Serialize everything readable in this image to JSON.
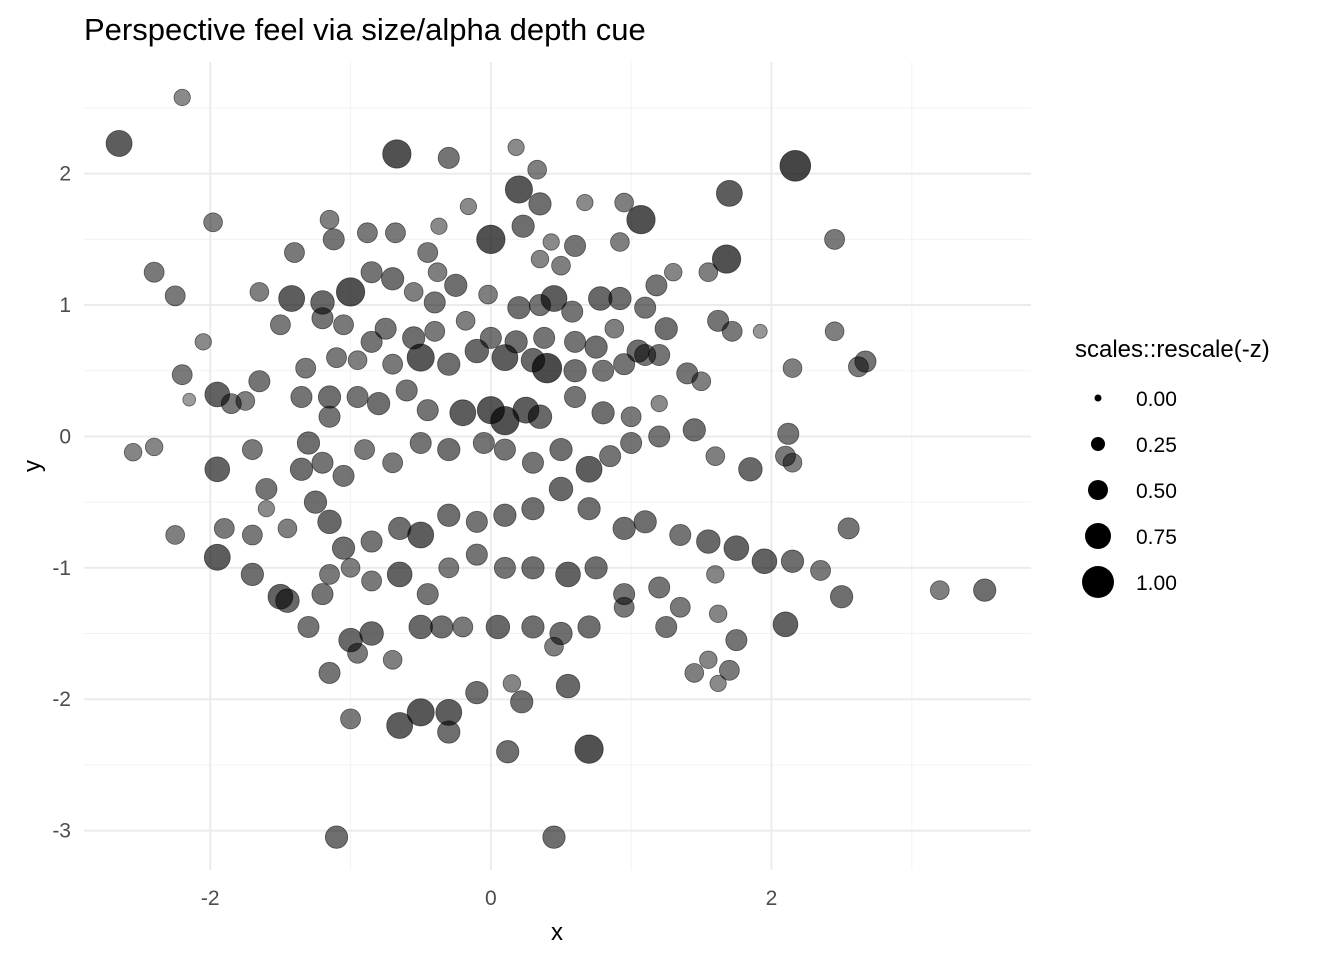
{
  "chart_data": {
    "type": "scatter",
    "title": "Perspective feel via size/alpha depth cue",
    "xlabel": "x",
    "ylabel": "y",
    "xlim": [
      -2.9,
      3.85
    ],
    "ylim": [
      -3.3,
      2.85
    ],
    "x_ticks": [
      -2,
      0,
      2
    ],
    "x_tick_labels": [
      "-2",
      "0",
      "2"
    ],
    "y_ticks": [
      -3,
      -2,
      -1,
      0,
      1,
      2
    ],
    "y_tick_labels": [
      "-3",
      "-2",
      "-1",
      "0",
      "1",
      "2"
    ],
    "grid": true,
    "legend": {
      "title": "scales::rescale(-z)",
      "placement": "right",
      "entries": [
        {
          "value": 0.0,
          "label": "0.00"
        },
        {
          "value": 0.25,
          "label": "0.25"
        },
        {
          "value": 0.5,
          "label": "0.50"
        },
        {
          "value": 0.75,
          "label": "0.75"
        },
        {
          "value": 1.0,
          "label": "1.00"
        }
      ]
    },
    "point_color": "#000000",
    "points": [
      [
        -2.2,
        2.58,
        0.35
      ],
      [
        -2.65,
        2.23,
        0.75
      ],
      [
        -0.67,
        2.15,
        0.85
      ],
      [
        -0.3,
        2.12,
        0.55
      ],
      [
        0.18,
        2.2,
        0.35
      ],
      [
        0.33,
        2.03,
        0.45
      ],
      [
        0.2,
        1.88,
        0.8
      ],
      [
        0.35,
        1.77,
        0.6
      ],
      [
        0.67,
        1.78,
        0.35
      ],
      [
        0.95,
        1.78,
        0.45
      ],
      [
        1.7,
        1.85,
        0.75
      ],
      [
        2.17,
        2.06,
        0.95
      ],
      [
        -1.98,
        1.63,
        0.45
      ],
      [
        -1.15,
        1.65,
        0.45
      ],
      [
        -0.37,
        1.6,
        0.35
      ],
      [
        -0.16,
        1.75,
        0.35
      ],
      [
        0.0,
        1.5,
        0.85
      ],
      [
        0.23,
        1.6,
        0.6
      ],
      [
        0.43,
        1.48,
        0.35
      ],
      [
        0.6,
        1.45,
        0.55
      ],
      [
        0.92,
        1.48,
        0.45
      ],
      [
        1.07,
        1.65,
        0.85
      ],
      [
        1.68,
        1.35,
        0.85
      ],
      [
        2.45,
        1.5,
        0.5
      ],
      [
        -2.4,
        1.25,
        0.5
      ],
      [
        -1.4,
        1.4,
        0.5
      ],
      [
        -1.12,
        1.5,
        0.55
      ],
      [
        -0.88,
        1.55,
        0.5
      ],
      [
        -0.68,
        1.55,
        0.5
      ],
      [
        -0.45,
        1.4,
        0.5
      ],
      [
        -0.38,
        1.25,
        0.45
      ],
      [
        0.35,
        1.35,
        0.4
      ],
      [
        0.5,
        1.3,
        0.45
      ],
      [
        1.3,
        1.25,
        0.4
      ],
      [
        1.55,
        1.25,
        0.45
      ],
      [
        -2.25,
        1.07,
        0.5
      ],
      [
        -1.65,
        1.1,
        0.45
      ],
      [
        -1.42,
        1.05,
        0.75
      ],
      [
        -1.2,
        1.02,
        0.65
      ],
      [
        -1.0,
        1.1,
        0.85
      ],
      [
        -0.85,
        1.25,
        0.55
      ],
      [
        -0.7,
        1.2,
        0.6
      ],
      [
        -0.55,
        1.1,
        0.45
      ],
      [
        -0.4,
        1.02,
        0.55
      ],
      [
        -0.25,
        1.15,
        0.6
      ],
      [
        -0.02,
        1.08,
        0.45
      ],
      [
        0.2,
        0.98,
        0.6
      ],
      [
        0.35,
        1.0,
        0.55
      ],
      [
        0.45,
        1.05,
        0.75
      ],
      [
        0.58,
        0.95,
        0.55
      ],
      [
        0.78,
        1.05,
        0.65
      ],
      [
        0.92,
        1.05,
        0.6
      ],
      [
        1.18,
        1.15,
        0.55
      ],
      [
        1.1,
        0.98,
        0.55
      ],
      [
        1.25,
        0.82,
        0.6
      ],
      [
        1.62,
        0.88,
        0.55
      ],
      [
        1.72,
        0.8,
        0.5
      ],
      [
        1.92,
        0.8,
        0.25
      ],
      [
        2.45,
        0.8,
        0.45
      ],
      [
        -1.5,
        0.85,
        0.5
      ],
      [
        -1.2,
        0.9,
        0.55
      ],
      [
        -1.05,
        0.85,
        0.5
      ],
      [
        -0.85,
        0.72,
        0.55
      ],
      [
        -0.75,
        0.82,
        0.55
      ],
      [
        -0.55,
        0.75,
        0.6
      ],
      [
        -0.4,
        0.8,
        0.5
      ],
      [
        -0.18,
        0.88,
        0.45
      ],
      [
        0.0,
        0.75,
        0.55
      ],
      [
        0.18,
        0.72,
        0.6
      ],
      [
        0.38,
        0.75,
        0.55
      ],
      [
        0.6,
        0.72,
        0.55
      ],
      [
        0.75,
        0.68,
        0.6
      ],
      [
        0.88,
        0.82,
        0.45
      ],
      [
        1.05,
        0.65,
        0.6
      ],
      [
        1.2,
        0.62,
        0.55
      ],
      [
        -2.05,
        0.72,
        0.35
      ],
      [
        -2.2,
        0.47,
        0.5
      ],
      [
        -1.95,
        0.32,
        0.7
      ],
      [
        -1.65,
        0.42,
        0.55
      ],
      [
        -1.75,
        0.27,
        0.45
      ],
      [
        -1.32,
        0.52,
        0.5
      ],
      [
        -1.1,
        0.6,
        0.5
      ],
      [
        -0.95,
        0.58,
        0.45
      ],
      [
        -0.7,
        0.55,
        0.5
      ],
      [
        -0.5,
        0.6,
        0.8
      ],
      [
        -0.3,
        0.55,
        0.6
      ],
      [
        -0.1,
        0.65,
        0.65
      ],
      [
        0.1,
        0.6,
        0.75
      ],
      [
        0.3,
        0.58,
        0.65
      ],
      [
        0.4,
        0.52,
        0.9
      ],
      [
        0.6,
        0.5,
        0.6
      ],
      [
        0.8,
        0.5,
        0.55
      ],
      [
        0.95,
        0.55,
        0.55
      ],
      [
        1.1,
        0.62,
        0.55
      ],
      [
        1.4,
        0.48,
        0.55
      ],
      [
        1.5,
        0.42,
        0.45
      ],
      [
        2.15,
        0.52,
        0.45
      ],
      [
        2.62,
        0.53,
        0.5
      ],
      [
        2.67,
        0.57,
        0.55
      ],
      [
        -2.15,
        0.28,
        0.2
      ],
      [
        -1.85,
        0.25,
        0.5
      ],
      [
        -1.35,
        0.3,
        0.55
      ],
      [
        -1.15,
        0.3,
        0.6
      ],
      [
        -1.15,
        0.15,
        0.55
      ],
      [
        -0.95,
        0.3,
        0.55
      ],
      [
        -0.8,
        0.25,
        0.6
      ],
      [
        -0.6,
        0.35,
        0.55
      ],
      [
        -0.45,
        0.2,
        0.55
      ],
      [
        -0.2,
        0.18,
        0.75
      ],
      [
        0.0,
        0.2,
        0.8
      ],
      [
        0.1,
        0.12,
        0.85
      ],
      [
        0.25,
        0.2,
        0.75
      ],
      [
        0.35,
        0.15,
        0.65
      ],
      [
        0.6,
        0.3,
        0.55
      ],
      [
        0.8,
        0.18,
        0.6
      ],
      [
        1.0,
        0.15,
        0.5
      ],
      [
        1.2,
        0.25,
        0.35
      ],
      [
        -2.55,
        -0.12,
        0.4
      ],
      [
        -2.4,
        -0.08,
        0.4
      ],
      [
        -1.95,
        -0.25,
        0.7
      ],
      [
        -1.7,
        -0.1,
        0.5
      ],
      [
        -1.6,
        -0.4,
        0.55
      ],
      [
        -1.3,
        -0.05,
        0.6
      ],
      [
        -1.35,
        -0.25,
        0.6
      ],
      [
        -1.2,
        -0.2,
        0.55
      ],
      [
        -1.05,
        -0.3,
        0.55
      ],
      [
        -0.9,
        -0.1,
        0.5
      ],
      [
        -0.7,
        -0.2,
        0.5
      ],
      [
        -0.5,
        -0.05,
        0.55
      ],
      [
        -0.3,
        -0.1,
        0.6
      ],
      [
        -0.05,
        -0.05,
        0.55
      ],
      [
        0.1,
        -0.1,
        0.55
      ],
      [
        0.3,
        -0.2,
        0.55
      ],
      [
        0.5,
        -0.1,
        0.6
      ],
      [
        0.7,
        -0.25,
        0.75
      ],
      [
        0.85,
        -0.15,
        0.55
      ],
      [
        1.0,
        -0.05,
        0.55
      ],
      [
        1.2,
        0.0,
        0.55
      ],
      [
        1.45,
        0.05,
        0.6
      ],
      [
        1.6,
        -0.15,
        0.45
      ],
      [
        1.85,
        -0.25,
        0.65
      ],
      [
        2.15,
        -0.2,
        0.45
      ],
      [
        2.12,
        0.02,
        0.55
      ],
      [
        2.1,
        -0.15,
        0.5
      ],
      [
        -2.25,
        -0.75,
        0.45
      ],
      [
        -1.95,
        -0.92,
        0.75
      ],
      [
        -1.9,
        -0.7,
        0.5
      ],
      [
        -1.7,
        -0.75,
        0.5
      ],
      [
        -1.6,
        -0.55,
        0.35
      ],
      [
        -1.45,
        -0.7,
        0.45
      ],
      [
        -1.25,
        -0.5,
        0.6
      ],
      [
        -1.15,
        -0.65,
        0.65
      ],
      [
        -1.05,
        -0.85,
        0.6
      ],
      [
        -0.85,
        -0.8,
        0.55
      ],
      [
        -0.65,
        -0.7,
        0.6
      ],
      [
        -0.5,
        -0.75,
        0.75
      ],
      [
        -0.3,
        -0.6,
        0.6
      ],
      [
        -0.1,
        -0.65,
        0.55
      ],
      [
        0.1,
        -0.6,
        0.6
      ],
      [
        0.3,
        -0.55,
        0.6
      ],
      [
        0.5,
        -0.4,
        0.65
      ],
      [
        0.7,
        -0.55,
        0.6
      ],
      [
        0.95,
        -0.7,
        0.6
      ],
      [
        1.1,
        -0.65,
        0.6
      ],
      [
        1.35,
        -0.75,
        0.55
      ],
      [
        1.55,
        -0.8,
        0.65
      ],
      [
        1.75,
        -0.85,
        0.7
      ],
      [
        1.95,
        -0.95,
        0.7
      ],
      [
        2.15,
        -0.95,
        0.6
      ],
      [
        2.55,
        -0.7,
        0.55
      ],
      [
        -1.7,
        -1.05,
        0.6
      ],
      [
        -1.5,
        -1.22,
        0.7
      ],
      [
        -1.3,
        -1.45,
        0.55
      ],
      [
        -1.15,
        -1.05,
        0.5
      ],
      [
        -1.0,
        -1.0,
        0.45
      ],
      [
        -0.85,
        -1.1,
        0.5
      ],
      [
        -0.65,
        -1.05,
        0.7
      ],
      [
        -0.45,
        -1.2,
        0.55
      ],
      [
        -0.3,
        -1.0,
        0.5
      ],
      [
        -0.1,
        -0.9,
        0.55
      ],
      [
        0.1,
        -1.0,
        0.55
      ],
      [
        0.3,
        -1.0,
        0.6
      ],
      [
        0.55,
        -1.05,
        0.7
      ],
      [
        0.75,
        -1.0,
        0.6
      ],
      [
        0.95,
        -1.2,
        0.55
      ],
      [
        1.2,
        -1.15,
        0.55
      ],
      [
        1.35,
        -1.3,
        0.5
      ],
      [
        1.62,
        -1.35,
        0.4
      ],
      [
        1.6,
        -1.05,
        0.4
      ],
      [
        2.35,
        -1.02,
        0.5
      ],
      [
        2.5,
        -1.22,
        0.6
      ],
      [
        3.2,
        -1.17,
        0.45
      ],
      [
        3.52,
        -1.17,
        0.6
      ],
      [
        -1.45,
        -1.25,
        0.65
      ],
      [
        -1.2,
        -1.2,
        0.55
      ],
      [
        -1.0,
        -1.55,
        0.65
      ],
      [
        -0.85,
        -1.5,
        0.65
      ],
      [
        -0.5,
        -1.45,
        0.65
      ],
      [
        -0.35,
        -1.45,
        0.6
      ],
      [
        -0.2,
        -1.45,
        0.5
      ],
      [
        0.05,
        -1.45,
        0.65
      ],
      [
        0.3,
        -1.45,
        0.6
      ],
      [
        0.5,
        -1.5,
        0.6
      ],
      [
        0.7,
        -1.45,
        0.6
      ],
      [
        0.95,
        -1.3,
        0.5
      ],
      [
        1.25,
        -1.45,
        0.55
      ],
      [
        1.75,
        -1.55,
        0.55
      ],
      [
        2.1,
        -1.43,
        0.7
      ],
      [
        -1.15,
        -1.8,
        0.55
      ],
      [
        -0.95,
        -1.65,
        0.5
      ],
      [
        -0.7,
        -1.7,
        0.45
      ],
      [
        0.45,
        -1.6,
        0.45
      ],
      [
        0.55,
        -1.9,
        0.65
      ],
      [
        1.45,
        -1.8,
        0.45
      ],
      [
        1.55,
        -1.7,
        0.4
      ],
      [
        1.62,
        -1.88,
        0.35
      ],
      [
        1.7,
        -1.78,
        0.5
      ],
      [
        -1.0,
        -2.15,
        0.5
      ],
      [
        -0.65,
        -2.2,
        0.75
      ],
      [
        -0.5,
        -2.1,
        0.8
      ],
      [
        -0.3,
        -2.1,
        0.75
      ],
      [
        -0.3,
        -2.25,
        0.6
      ],
      [
        -0.1,
        -1.95,
        0.6
      ],
      [
        0.15,
        -1.88,
        0.4
      ],
      [
        0.22,
        -2.02,
        0.6
      ],
      [
        0.12,
        -2.4,
        0.6
      ],
      [
        0.7,
        -2.38,
        0.85
      ],
      [
        -1.1,
        -3.05,
        0.6
      ],
      [
        0.45,
        -3.05,
        0.6
      ]
    ]
  }
}
